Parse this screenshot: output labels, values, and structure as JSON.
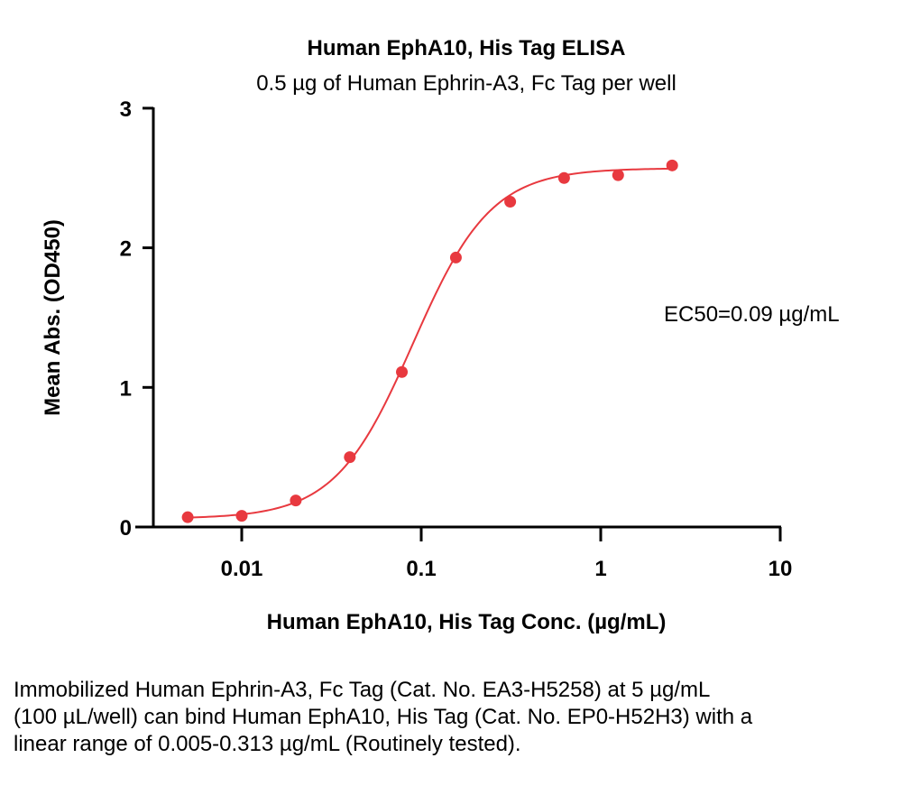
{
  "chart_data": {
    "type": "scatter",
    "title": "Human EphA10, His Tag ELISA",
    "subtitle": "0.5 µg of Human Ephrin-A3, Fc Tag per well",
    "xlabel": "Human EphA10, His Tag Conc. (µg/mL)",
    "ylabel": "Mean Abs. (OD450)",
    "x_scale": "log",
    "xlim": [
      0.0035,
      10
    ],
    "ylim": [
      0,
      3
    ],
    "x_ticks": [
      0.01,
      0.1,
      1,
      10
    ],
    "x_tick_labels": [
      "0.01",
      "0.1",
      "1",
      "10"
    ],
    "y_ticks": [
      0,
      1,
      2,
      3
    ],
    "y_tick_labels": [
      "0",
      "1",
      "2",
      "3"
    ],
    "grid": false,
    "series": [
      {
        "x": [
          0.005,
          0.01,
          0.02,
          0.04,
          0.078,
          0.156,
          0.313,
          0.625,
          1.25,
          2.5
        ],
        "y": [
          0.07,
          0.08,
          0.19,
          0.5,
          1.11,
          1.93,
          2.33,
          2.5,
          2.52,
          2.59
        ],
        "color": "#e8393f"
      }
    ],
    "fit_curve": {
      "model": "4PL",
      "bottom": 0.06,
      "top": 2.57,
      "ec50": 0.09,
      "hill": 2.0,
      "color": "#e8393f"
    },
    "annotation": "EC50=0.09 µg/mL"
  },
  "caption": "Immobilized Human Ephrin-A3, Fc Tag (Cat. No. EA3-H5258) at 5 µg/mL (100 µL/well) can bind Human EphA10, His Tag (Cat. No. EP0-H52H3) with a linear range of 0.005-0.313 µg/mL (Routinely tested)."
}
